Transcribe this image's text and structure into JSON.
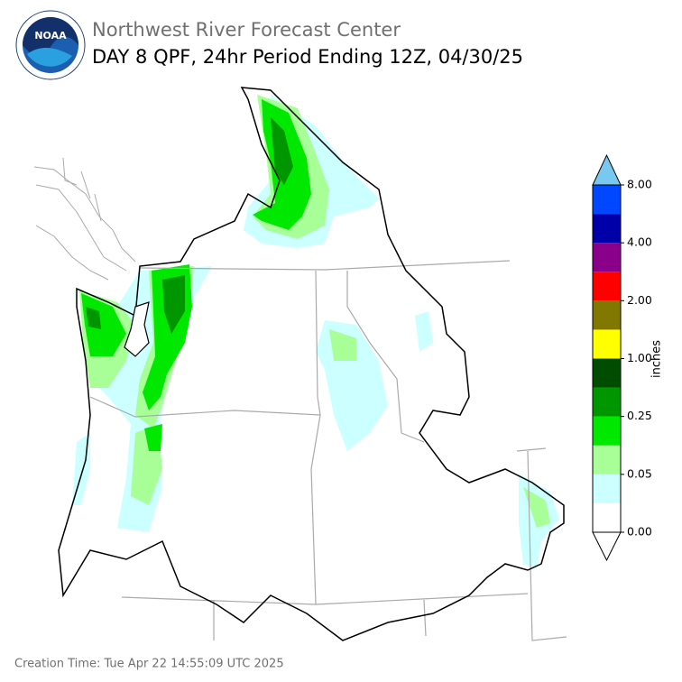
{
  "header": {
    "logo": "NOAA",
    "title": "Northwest River Forecast Center",
    "subtitle": "DAY 8 QPF, 24hr Period Ending 12Z, 04/30/25"
  },
  "legend": {
    "label": "inches",
    "ticks": [
      "0.00",
      "0.05",
      "0.25",
      "1.00",
      "2.00",
      "4.00",
      "8.00"
    ],
    "colors": [
      "#ffffff",
      "#ccffff",
      "#a8ff98",
      "#00e800",
      "#009600",
      "#004c00",
      "#ffff00",
      "#807800",
      "#ff0000",
      "#8a008a",
      "#0000a8",
      "#0048ff"
    ],
    "over_color": "#78c8f0",
    "under_color": "#ffffff"
  },
  "footer": {
    "creation_time": "Creation Time: Tue Apr 22 14:55:09 UTC 2025"
  }
}
